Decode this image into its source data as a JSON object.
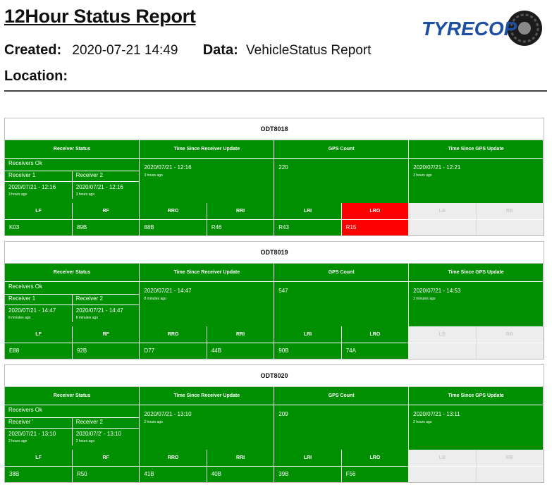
{
  "header": {
    "title": "12Hour Status Report",
    "created_label": "Created:",
    "created_value": "2020-07-21 14:49",
    "data_label": "Data:",
    "data_value": "VehicleStatus Report",
    "location_label": "Location:",
    "logo_text": "TYRECOP"
  },
  "columns": {
    "receiver_status": "Receiver Status",
    "time_since_receiver": "Time Since Receiver Update",
    "gps_count": "GPS Count",
    "time_since_gps": "Time Since GPS Update"
  },
  "colors": {
    "ok": "#008f00",
    "alert": "#ff0000",
    "disabled": "#ededed"
  },
  "vehicles": [
    {
      "id": "ODT8018",
      "receivers_ok": "Receivers Ok",
      "receiver1_label": "Receiver 1",
      "receiver1_time": "2020/07/21 - 12:16",
      "receiver1_ago": "3 hours ago",
      "receiver2_label": "Receiver 2",
      "receiver2_time": "2020/07/21 - 12:16",
      "receiver2_ago": "3 hours ago",
      "receiver_update_time": "2020/07/21 - 12:16",
      "receiver_update_ago": "3 hours ago",
      "gps_count": "220",
      "gps_update_time": "2020/07/21 - 12:21",
      "gps_update_ago": "3 hours ago",
      "tyres": [
        {
          "pos": "LF",
          "value": "K03",
          "state": "ok"
        },
        {
          "pos": "RF",
          "value": "89B",
          "state": "ok"
        },
        {
          "pos": "RRO",
          "value": "88B",
          "state": "ok"
        },
        {
          "pos": "RRI",
          "value": "R46",
          "state": "ok"
        },
        {
          "pos": "LRI",
          "value": "R43",
          "state": "ok"
        },
        {
          "pos": "LRO",
          "value": "R15",
          "state": "alert"
        },
        {
          "pos": "LB",
          "value": "",
          "state": "disabled"
        },
        {
          "pos": "RB",
          "value": "",
          "state": "disabled"
        }
      ]
    },
    {
      "id": "ODT8019",
      "receivers_ok": "Receivers Ok",
      "receiver1_label": "Receiver 1",
      "receiver1_time": "2020/07/21 - 14:47",
      "receiver1_ago": "8 minutes ago",
      "receiver2_label": "Receiver 2",
      "receiver2_time": "2020/07/21 - 14:47",
      "receiver2_ago": "8 minutes ago",
      "receiver_update_time": "2020/07/21 - 14:47",
      "receiver_update_ago": "8 minutes ago",
      "gps_count": "547",
      "gps_update_time": "2020/07/21 - 14:53",
      "gps_update_ago": "2 minutes ago",
      "tyres": [
        {
          "pos": "LF",
          "value": "E88",
          "state": "ok"
        },
        {
          "pos": "RF",
          "value": "92B",
          "state": "ok"
        },
        {
          "pos": "RRO",
          "value": "D77",
          "state": "ok"
        },
        {
          "pos": "RRI",
          "value": "44B",
          "state": "ok"
        },
        {
          "pos": "LRI",
          "value": "90B",
          "state": "ok"
        },
        {
          "pos": "LRO",
          "value": "74A",
          "state": "ok"
        },
        {
          "pos": "LB",
          "value": "",
          "state": "disabled"
        },
        {
          "pos": "RB",
          "value": "",
          "state": "disabled"
        }
      ]
    },
    {
      "id": "ODT8020",
      "receivers_ok": "Receivers Ok",
      "receiver1_label": "Receiver '",
      "receiver1_time": "2020/07/21 - 13:10",
      "receiver1_ago": "2 hours ago",
      "receiver2_label": "Receiver 2",
      "receiver2_time": "2020/07/2' - 13:10",
      "receiver2_ago": "2 hours ago",
      "receiver_update_time": "2020/07/21 - 13:10",
      "receiver_update_ago": "2 hours ago",
      "gps_count": "209",
      "gps_update_time": "2020/07/21 - 13:11",
      "gps_update_ago": "2 hours ago",
      "tyres": [
        {
          "pos": "LF",
          "value": "38B",
          "state": "ok"
        },
        {
          "pos": "RF",
          "value": "R50",
          "state": "ok"
        },
        {
          "pos": "RRO",
          "value": "41B",
          "state": "ok"
        },
        {
          "pos": "RRI",
          "value": "40B",
          "state": "ok"
        },
        {
          "pos": "LRI",
          "value": "39B",
          "state": "ok"
        },
        {
          "pos": "LRO",
          "value": "F56",
          "state": "ok"
        },
        {
          "pos": "LB",
          "value": "",
          "state": "disabled"
        },
        {
          "pos": "RB",
          "value": "",
          "state": "disabled"
        }
      ]
    }
  ]
}
